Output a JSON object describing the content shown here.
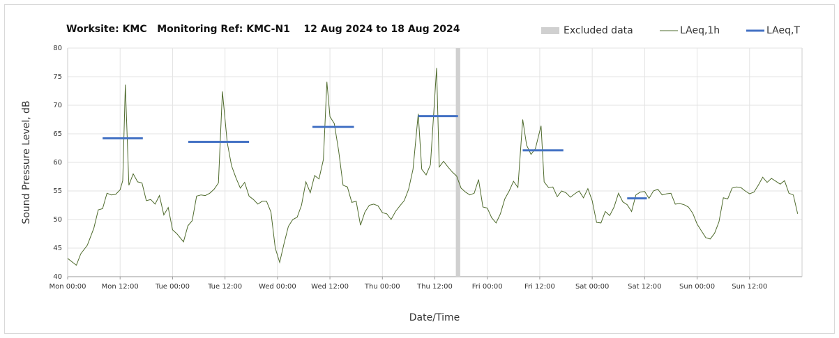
{
  "chart_data": {
    "type": "line",
    "title": "Worksite: KMC   Monitoring Ref: KMC-N1    12 Aug 2024 to 18 Aug 2024",
    "xlabel": "Date/Time",
    "ylabel": "Sound Pressure Level, dB",
    "xlim": [
      0,
      168
    ],
    "xticks": [
      {
        "value": 0,
        "label": "Mon 00:00"
      },
      {
        "value": 12,
        "label": "Mon 12:00"
      },
      {
        "value": 24,
        "label": "Tue 00:00"
      },
      {
        "value": 36,
        "label": "Tue 12:00"
      },
      {
        "value": 48,
        "label": "Wed 00:00"
      },
      {
        "value": 60,
        "label": "Wed 12:00"
      },
      {
        "value": 72,
        "label": "Thu 00:00"
      },
      {
        "value": 84,
        "label": "Thu 12:00"
      },
      {
        "value": 96,
        "label": "Fri 00:00"
      },
      {
        "value": 108,
        "label": "Fri 12:00"
      },
      {
        "value": 120,
        "label": "Sat 00:00"
      },
      {
        "value": 132,
        "label": "Sat 12:00"
      },
      {
        "value": 144,
        "label": "Sun 00:00"
      },
      {
        "value": 156,
        "label": "Sun 12:00"
      }
    ],
    "ylim": [
      40,
      80
    ],
    "yticks": [
      40,
      45,
      50,
      55,
      60,
      65,
      70,
      75,
      80
    ],
    "grid": true,
    "legend": "top-right",
    "excluded": {
      "name": "Excluded data",
      "color": "#d0d0d0",
      "x_from": 88.8,
      "x_to": 89.8
    },
    "series": [
      {
        "name": "LAeq,1h",
        "color": "#4f6b2d",
        "x": [
          0,
          2,
          3,
          4.5,
          6,
          7,
          8,
          9,
          10,
          11,
          12,
          12.6,
          13.2,
          14,
          15,
          16,
          17,
          18,
          19,
          20,
          21,
          22,
          23,
          24,
          25,
          26.5,
          27.5,
          28.5,
          29.5,
          30.5,
          31.5,
          32.5,
          33.5,
          34.5,
          35.4,
          36.5,
          37.5,
          38.5,
          39.5,
          40.5,
          41.5,
          42.5,
          43.5,
          44.5,
          45.5,
          46.5,
          47.5,
          48.5,
          49.5,
          50.5,
          51.5,
          52.5,
          53.5,
          54.5,
          55.5,
          56.5,
          57.5,
          58.5,
          59.3,
          60,
          61,
          62,
          63,
          64,
          65,
          66,
          67,
          68,
          69,
          70,
          71,
          72,
          73,
          74,
          75,
          76,
          77,
          78,
          79,
          80.2,
          81,
          82,
          83,
          84.4,
          85,
          86,
          87,
          88,
          89,
          90,
          91,
          92,
          93,
          94,
          95,
          96,
          97,
          98,
          99,
          100,
          101,
          102,
          103,
          104.1,
          105,
          106,
          107,
          108.3,
          109,
          110,
          111,
          112,
          113,
          114,
          115,
          116,
          117,
          118,
          119,
          120,
          121,
          122,
          123,
          124,
          125,
          126,
          127,
          128,
          129,
          130,
          131,
          132,
          133,
          134,
          135,
          136,
          137,
          138,
          139,
          140,
          141,
          142,
          143,
          144,
          145,
          146,
          147,
          148,
          149,
          150,
          151,
          152,
          153,
          154,
          155,
          156,
          157,
          158,
          159,
          160,
          161,
          162,
          163,
          164,
          165,
          166,
          167
        ],
        "values": [
          43.2,
          42,
          44,
          45.5,
          48.5,
          51.7,
          51.9,
          54.6,
          54.3,
          54.4,
          55.2,
          56.8,
          73.6,
          56,
          58,
          56.6,
          56.4,
          53.3,
          53.5,
          52.7,
          54.2,
          50.8,
          52.1,
          48.2,
          47.5,
          46.1,
          48.9,
          49.8,
          54.1,
          54.3,
          54.2,
          54.6,
          55.3,
          56.4,
          72.4,
          63.5,
          59.4,
          57.3,
          55.5,
          56.5,
          54.1,
          53.5,
          52.7,
          53.2,
          53.2,
          51.3,
          45,
          42.5,
          45.8,
          48.8,
          50,
          50.4,
          52.5,
          56.6,
          54.7,
          57.7,
          57.1,
          60.5,
          74.1,
          68,
          66.8,
          62,
          56,
          55.7,
          53,
          53.2,
          49,
          51.3,
          52.5,
          52.7,
          52.4,
          51.2,
          51,
          50,
          51.4,
          52.4,
          53.3,
          55.3,
          58.8,
          68.5,
          58.8,
          57.8,
          59.6,
          76.5,
          59.2,
          60.2,
          59.2,
          58.3,
          57.6,
          55.5,
          54.8,
          54.3,
          54.6,
          57,
          52.2,
          52,
          50.3,
          49.4,
          51,
          53.6,
          55,
          56.7,
          55.6,
          67.5,
          63,
          61.4,
          62.4,
          66.4,
          56.6,
          55.6,
          55.7,
          54,
          55,
          54.7,
          53.9,
          54.5,
          55,
          53.8,
          55.4,
          53.3,
          49.5,
          49.4,
          51.4,
          50.7,
          52.2,
          54.6,
          53.1,
          52.6,
          51.4,
          54.3,
          54.8,
          54.9,
          53.7,
          55,
          55.3,
          54.3,
          54.5,
          54.6,
          52.7,
          52.8,
          52.6,
          52.2,
          51.1,
          49.2,
          48,
          46.8,
          46.6,
          47.6,
          49.6,
          53.8,
          53.6,
          55.5,
          55.7,
          55.6,
          55,
          54.5,
          54.8,
          56,
          57.4,
          56.5,
          57.2,
          56.7,
          56.2,
          56.8,
          54.6,
          54.3,
          51
        ]
      },
      {
        "name": "LAeq,T",
        "color": "#4472c4",
        "x_start": [
          8,
          27.6,
          56,
          80.2,
          104.1,
          128
        ],
        "x_end": [
          17.2,
          41.5,
          65.5,
          89.3,
          113.4,
          132.5
        ],
        "values": [
          64.2,
          63.6,
          66.2,
          68.1,
          62.1,
          53.7
        ]
      }
    ]
  }
}
